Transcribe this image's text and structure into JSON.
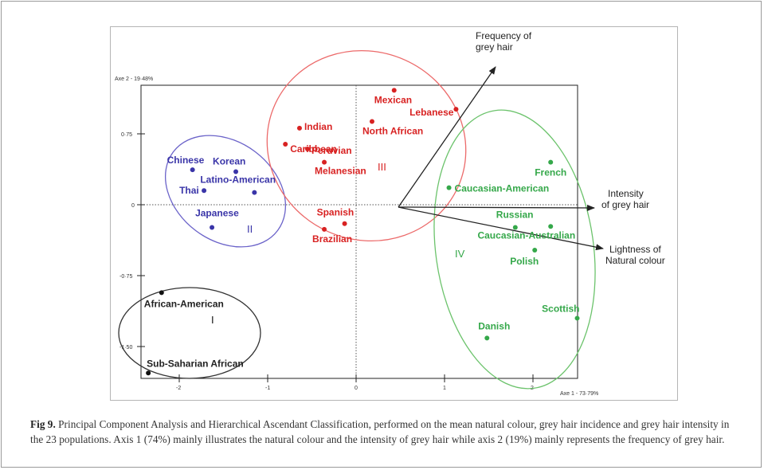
{
  "colors": {
    "group_I": "#111111",
    "group_II": "#3a35a8",
    "group_III": "#d82222",
    "group_IV": "#35a84a",
    "ellipse_II": "#6b63c9",
    "ellipse_III": "#ec6a6a",
    "ellipse_IV": "#6cc36c"
  },
  "chart_data": {
    "type": "scatter",
    "x_axis": {
      "label": "Axe 1 - 73·79%",
      "ticks": [
        "-2",
        "-1",
        "0",
        "1",
        "2"
      ],
      "range": [
        -2.35,
        2.55
      ]
    },
    "y_axis": {
      "label": "Axe 2 - 19·48%",
      "ticks": [
        "0·75",
        "0",
        "-0·75",
        "-1·50"
      ],
      "range": [
        -1.78,
        1.27
      ]
    },
    "grid": "dotted lines at x = 0 and y = 0",
    "groups": [
      {
        "name": "I",
        "color": "#111111",
        "points": [
          {
            "label": "African-American",
            "x": -2.2,
            "y": -0.93
          },
          {
            "label": "Sub-Saharian African",
            "x": -2.35,
            "y": -1.78
          }
        ]
      },
      {
        "name": "II",
        "color": "#3a35a8",
        "points": [
          {
            "label": "Chinese",
            "x": -1.85,
            "y": 0.37
          },
          {
            "label": "Korean",
            "x": -1.36,
            "y": 0.35
          },
          {
            "label": "Latino-American",
            "x": -1.15,
            "y": 0.13
          },
          {
            "label": "Thai",
            "x": -1.72,
            "y": 0.15
          },
          {
            "label": "Japanese",
            "x": -1.63,
            "y": -0.24
          }
        ]
      },
      {
        "name": "III",
        "color": "#d82222",
        "points": [
          {
            "label": "Mexican",
            "x": 0.43,
            "y": 1.21
          },
          {
            "label": "Lebanese",
            "x": 1.13,
            "y": 1.01
          },
          {
            "label": "North African",
            "x": 0.18,
            "y": 0.88
          },
          {
            "label": "Indian",
            "x": -0.64,
            "y": 0.81
          },
          {
            "label": "Caribbean",
            "x": -0.8,
            "y": 0.64
          },
          {
            "label": "Peruvian",
            "x": -0.55,
            "y": 0.59
          },
          {
            "label": "Melanesian",
            "x": -0.36,
            "y": 0.45
          },
          {
            "label": "Spanish",
            "x": -0.13,
            "y": -0.2
          },
          {
            "label": "Brazilian",
            "x": -0.36,
            "y": -0.26
          }
        ]
      },
      {
        "name": "IV",
        "color": "#35a84a",
        "points": [
          {
            "label": "French",
            "x": 2.2,
            "y": 0.45
          },
          {
            "label": "Caucasian-American",
            "x": 1.05,
            "y": 0.18
          },
          {
            "label": "Russian",
            "x": 1.8,
            "y": -0.24
          },
          {
            "label": "Caucasian-Australian",
            "x": 2.2,
            "y": -0.23
          },
          {
            "label": "Polish",
            "x": 2.02,
            "y": -0.48
          },
          {
            "label": "Danish",
            "x": 1.48,
            "y": -1.41
          },
          {
            "label": "Scottish",
            "x": 2.5,
            "y": -1.2
          }
        ]
      }
    ],
    "vectors": [
      {
        "label": "Frequency of grey hair",
        "x": 1.1,
        "y": 1.49
      },
      {
        "label": "Intensity of grey hair",
        "x": 2.3,
        "y": -0.03
      },
      {
        "label": "Lightness of Natural colour",
        "x": 2.4,
        "y": -0.46
      }
    ],
    "cluster_labels": [
      "I",
      "II",
      "III",
      "IV"
    ]
  },
  "caption": {
    "label": "Fig 9.",
    "text": " Principal Component Analysis and Hierarchical Ascendant Classification, performed on the mean natural colour, grey hair incidence and grey hair intensity in the 23 populations. Axis 1 (74%) mainly illustrates the natural colour and the intensity of grey hair while axis 2 (19%) mainly represents the frequency of grey hair."
  }
}
